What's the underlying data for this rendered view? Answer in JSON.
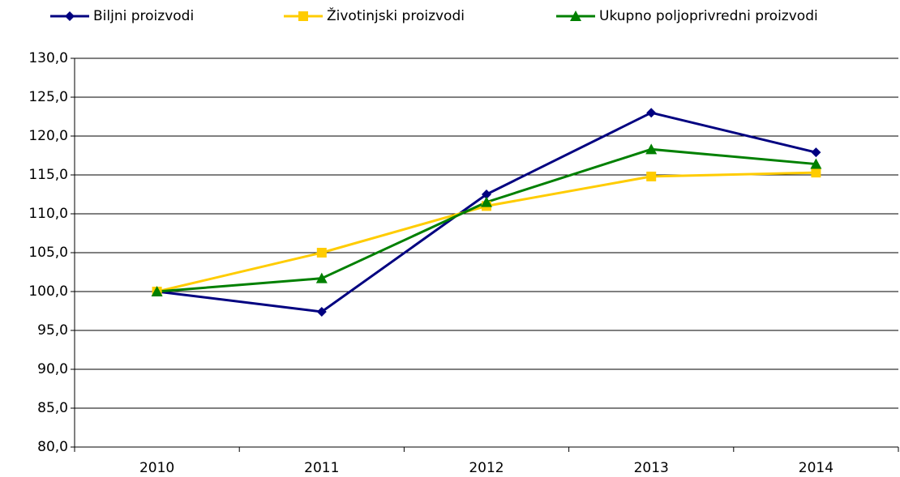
{
  "chart_data": {
    "type": "line",
    "categories": [
      "2010",
      "2011",
      "2012",
      "2013",
      "2014"
    ],
    "series": [
      {
        "name": "Biljni proizvodi",
        "color": "#000080",
        "marker": "diamond",
        "values": [
          100.0,
          97.4,
          112.5,
          123.0,
          117.9
        ]
      },
      {
        "name": "Životinjski proizvodi",
        "color": "#ffcc00",
        "marker": "square",
        "values": [
          100.0,
          105.0,
          111.0,
          114.8,
          115.3
        ]
      },
      {
        "name": "Ukupno poljoprivredni proizvodi",
        "color": "#008000",
        "marker": "triangle",
        "values": [
          100.0,
          101.7,
          111.5,
          118.3,
          116.4
        ]
      }
    ],
    "ylim": [
      80,
      130
    ],
    "yticks": [
      {
        "value": 80,
        "label": "80,0"
      },
      {
        "value": 85,
        "label": "85,0"
      },
      {
        "value": 90,
        "label": "90,0"
      },
      {
        "value": 95,
        "label": "95,0"
      },
      {
        "value": 100,
        "label": "100,0"
      },
      {
        "value": 105,
        "label": "105,0"
      },
      {
        "value": 110,
        "label": "110,0"
      },
      {
        "value": 115,
        "label": "115,0"
      },
      {
        "value": 120,
        "label": "120,0"
      },
      {
        "value": 125,
        "label": "125,0"
      },
      {
        "value": 130,
        "label": "130,0"
      }
    ],
    "grid": true,
    "legend": "top"
  }
}
